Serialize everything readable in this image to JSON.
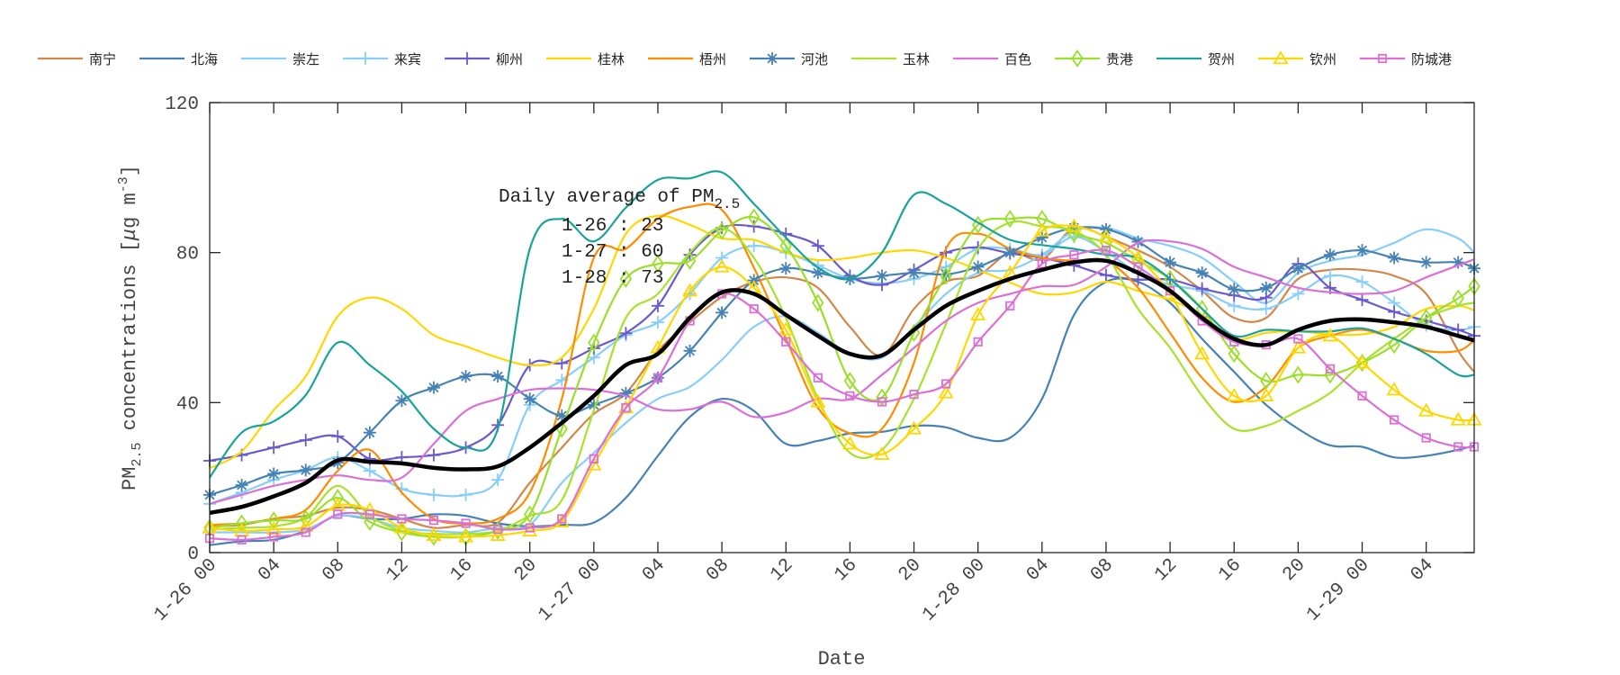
{
  "chart_data": {
    "type": "line",
    "title": "",
    "xlabel": "Date",
    "ylabel": "PM2.5 concentrations [μg m-3]",
    "ylabel_parts": {
      "main": "PM",
      "sub": "2.5",
      "rest": " concentrations [",
      "mu": "μ",
      "unit": "g m",
      "sup": "-3",
      "close": "]"
    },
    "ylim": [
      0,
      120
    ],
    "xlim": [
      "1-26 00",
      "1-29 07"
    ],
    "yticks": [
      0,
      40,
      80,
      120
    ],
    "xtick_labels": [
      "1-26 00",
      "04",
      "08",
      "12",
      "16",
      "20",
      "1-27 00",
      "04",
      "08",
      "12",
      "16",
      "20",
      "1-28 00",
      "04",
      "08",
      "12",
      "16",
      "20",
      "1-29 00",
      "04"
    ],
    "grid": false,
    "legend_placement": "top (outside, single row)",
    "annotation": {
      "title": "Daily average of PM",
      "title_sub": "2.5",
      "lines": [
        "1-26 : 23",
        "1-27 : 60",
        "1-28 : 73"
      ]
    },
    "x": [
      "1-26 00",
      "1-26 02",
      "1-26 04",
      "1-26 06",
      "1-26 08",
      "1-26 10",
      "1-26 12",
      "1-26 14",
      "1-26 16",
      "1-26 18",
      "1-26 20",
      "1-26 22",
      "1-27 00",
      "1-27 02",
      "1-27 04",
      "1-27 06",
      "1-27 08",
      "1-27 10",
      "1-27 12",
      "1-27 14",
      "1-27 16",
      "1-27 18",
      "1-27 20",
      "1-27 22",
      "1-28 00",
      "1-28 02",
      "1-28 04",
      "1-28 06",
      "1-28 08",
      "1-28 10",
      "1-28 12",
      "1-28 14",
      "1-28 16",
      "1-28 18",
      "1-28 20",
      "1-28 22",
      "1-29 00",
      "1-29 02",
      "1-29 04",
      "1-29 06",
      "1-29 07"
    ],
    "series": [
      {
        "name": "南宁",
        "color": "#D2874A",
        "marker": "none",
        "values": [
          7,
          7.4,
          9,
          9.8,
          12,
          11.4,
          9,
          6.6,
          7.4,
          8,
          18.6,
          28,
          37,
          42.5,
          53.8,
          61.4,
          68.2,
          72.2,
          73.4,
          70.6,
          60.2,
          52.6,
          65,
          72.2,
          73.8,
          80,
          78.2,
          86.6,
          84.2,
          80.6,
          76.2,
          69.8,
          62.6,
          62.6,
          73,
          75.4,
          75.4,
          73.8,
          69,
          53.8,
          48.2
        ]
      },
      {
        "name": "北海",
        "color": "#4682B4",
        "marker": "none",
        "values": [
          2,
          3,
          3.4,
          5.8,
          9.8,
          9,
          9,
          10.2,
          9.8,
          7.8,
          7,
          7.4,
          8,
          14.6,
          25.8,
          36.2,
          41,
          37.8,
          29,
          29.8,
          31.8,
          32.2,
          33.8,
          33.4,
          30.6,
          30.6,
          41,
          63.4,
          72.2,
          72.2,
          66.6,
          57,
          48.2,
          39.4,
          33,
          28.6,
          28.2,
          25.4,
          25.8,
          27.4,
          28.6
        ]
      },
      {
        "name": "崇左",
        "color": "#87CEFA",
        "marker": "none",
        "values": [
          5.4,
          5.4,
          5.4,
          6.2,
          9.8,
          9,
          6.6,
          5.8,
          5.4,
          6.6,
          7.4,
          18.6,
          26.6,
          34.6,
          41,
          44.2,
          51.4,
          60.2,
          63,
          58.6,
          53,
          52,
          60.2,
          69,
          74.6,
          75.4,
          79.4,
          85.8,
          86.6,
          83.8,
          81.8,
          78.6,
          72.2,
          66.6,
          74.6,
          77.8,
          79.4,
          82.6,
          86.2,
          83.8,
          80
        ]
      },
      {
        "name": "来宾",
        "color": "#87CEFA",
        "marker": "plus",
        "values": [
          13,
          16,
          19.4,
          22,
          25.4,
          21.8,
          17,
          15.4,
          15.4,
          19.4,
          39.4,
          46,
          52,
          58,
          61.4,
          69,
          78.6,
          81.8,
          80,
          76.6,
          73,
          71.8,
          73,
          76.2,
          81,
          81,
          79.4,
          84.2,
          80.2,
          74.6,
          71.4,
          69.8,
          65.8,
          65,
          69,
          73.8,
          72.2,
          66.6,
          60.6,
          59.4,
          60.2
        ]
      },
      {
        "name": "柳州",
        "color": "#6A5ACD",
        "marker": "plus",
        "values": [
          24.5,
          26,
          28,
          30,
          31,
          25,
          25.4,
          26,
          28,
          34,
          50,
          50.5,
          54.5,
          58.5,
          65.8,
          79.4,
          86.6,
          87,
          85,
          81.8,
          73.8,
          71.4,
          75.4,
          80,
          81.4,
          79.8,
          78.6,
          76.6,
          74,
          72.8,
          72.8,
          70.4,
          68.6,
          68,
          77,
          70.6,
          67.4,
          64.2,
          61.8,
          59.4,
          57.8
        ]
      },
      {
        "name": "桂林",
        "color": "#FFD700",
        "marker": "none",
        "values": [
          22.5,
          27,
          38,
          47,
          63,
          68,
          65,
          58,
          55,
          52,
          50,
          52,
          65,
          85,
          89.8,
          87.4,
          83.8,
          83.4,
          80,
          78,
          78.6,
          80,
          80.6,
          78.6,
          75.4,
          72,
          69,
          69.4,
          72.2,
          69.8,
          67.4,
          63.4,
          57,
          58.6,
          59,
          58.2,
          58.2,
          60.2,
          65,
          65.8,
          64.6
        ]
      },
      {
        "name": "梧州",
        "color": "#FF8C00",
        "marker": "none",
        "values": [
          7.4,
          7.8,
          9,
          11.4,
          21.8,
          27.4,
          16,
          9,
          7.8,
          9,
          16,
          41,
          78.6,
          81,
          89,
          92.2,
          91.4,
          76,
          57,
          38.6,
          31.8,
          33,
          50.6,
          81,
          85,
          81,
          78.6,
          77.8,
          77.8,
          70.6,
          58.6,
          46.6,
          40.2,
          44.2,
          54.6,
          57.8,
          59.4,
          57,
          53.8,
          53.8,
          56.6
        ]
      },
      {
        "name": "河池",
        "color": "#4682B4",
        "marker": "asterisk",
        "values": [
          15.4,
          18,
          21,
          22,
          24,
          32,
          40.5,
          44,
          47,
          47,
          41,
          36.5,
          39.4,
          42.5,
          46.6,
          53.8,
          64,
          72.6,
          75.8,
          74.6,
          73,
          73.8,
          74.6,
          74.2,
          76.2,
          80,
          84,
          86.6,
          86.2,
          82.9,
          77.4,
          74.6,
          70.2,
          70.6,
          75.8,
          79.4,
          80.6,
          78.6,
          77.4,
          77.4,
          75.8
        ]
      },
      {
        "name": "玉林",
        "color": "#A8E22A",
        "marker": "none",
        "values": [
          6.2,
          6.6,
          7,
          9.4,
          17.8,
          9.8,
          5.8,
          5,
          5,
          5.8,
          9.8,
          14,
          38,
          62.6,
          69,
          80,
          86.6,
          78.6,
          62.6,
          41,
          26.6,
          27.4,
          41,
          61,
          81,
          88,
          87,
          85.8,
          79.4,
          65,
          54.6,
          41.8,
          33,
          33.8,
          37.8,
          42.6,
          50.6,
          57,
          62.6,
          65.8,
          66.6
        ]
      },
      {
        "name": "百色",
        "color": "#DA70D6",
        "marker": "none",
        "values": [
          13,
          15.4,
          17.8,
          19.4,
          20.6,
          19.4,
          20,
          29,
          37.8,
          41,
          43.4,
          43.8,
          43.4,
          41.8,
          38.2,
          38.2,
          40.2,
          36.2,
          37.4,
          41,
          41,
          47.4,
          54.6,
          61.8,
          66.6,
          69,
          71,
          71.4,
          76.2,
          82.6,
          83,
          81,
          76.2,
          73.4,
          70.6,
          69.4,
          69,
          69.8,
          73.4,
          76.6,
          78.2
        ]
      },
      {
        "name": "贵港",
        "color": "#9ADF2A",
        "marker": "diamond",
        "values": [
          6.6,
          7.8,
          8.6,
          9,
          14.6,
          8.2,
          5.4,
          4.2,
          4.2,
          5.8,
          10.2,
          33,
          56,
          73,
          77,
          77.8,
          85.8,
          89.4,
          81.8,
          66.6,
          45.8,
          41.4,
          58.6,
          73.8,
          87.4,
          89,
          89,
          85,
          82.6,
          77.8,
          73,
          65,
          53,
          45.8,
          47.4,
          47.4,
          50.6,
          55.4,
          62.6,
          67.8,
          71
        ]
      },
      {
        "name": "贺州",
        "color": "#1AA39A",
        "marker": "none",
        "values": [
          20,
          32,
          35,
          42,
          56,
          50,
          43,
          33,
          28,
          33,
          81,
          89,
          83,
          92,
          99.4,
          99.8,
          101.4,
          93,
          84,
          76,
          73,
          80,
          95.4,
          93,
          88,
          83.4,
          82,
          81,
          79.4,
          78.6,
          73,
          65,
          57.8,
          59.4,
          59,
          59,
          59.8,
          57,
          53,
          47.4,
          47.4
        ]
      },
      {
        "name": "钦州",
        "color": "#FFD700",
        "marker": "triangle",
        "values": [
          6.6,
          5.8,
          6.2,
          7,
          12.6,
          11.4,
          6.6,
          4.6,
          4.2,
          4.6,
          5.8,
          8.2,
          23.4,
          38.6,
          54.6,
          69.8,
          76.2,
          70.6,
          59.4,
          40.2,
          29,
          26.2,
          33,
          42.6,
          63.4,
          74.6,
          85.8,
          87,
          84.2,
          78.6,
          69,
          53,
          41.8,
          41.8,
          54.6,
          57.8,
          50.6,
          43.4,
          37.8,
          35.4,
          35.4
        ]
      },
      {
        "name": "防城港",
        "color": "#DA70D6",
        "marker": "square",
        "values": [
          3.8,
          3.4,
          4.2,
          5.4,
          10.2,
          10.2,
          9,
          8.6,
          7.8,
          6.2,
          6.6,
          9,
          25,
          38.6,
          46.6,
          61.8,
          69,
          65,
          56.2,
          46.6,
          41.8,
          40.2,
          42.2,
          45,
          56.2,
          65.8,
          77,
          79.4,
          80.6,
          76.2,
          69.8,
          61.8,
          56.2,
          55.4,
          57,
          49,
          41.8,
          35.4,
          30.6,
          28.2,
          28.2
        ]
      }
    ],
    "mean_series": {
      "color": "#000000",
      "values": [
        10.6,
        12.2,
        15,
        18.6,
        24.6,
        24.2,
        23.8,
        22.6,
        22.2,
        23,
        28,
        34.6,
        41.8,
        50,
        53,
        62.6,
        69.4,
        69,
        63.4,
        57.8,
        53,
        52.6,
        59.4,
        65.8,
        69.8,
        73,
        75.4,
        77.4,
        77.8,
        74.6,
        69.8,
        62.6,
        57,
        55.4,
        59.4,
        61.8,
        62.2,
        61.4,
        60.2,
        57.8,
        56.6
      ]
    }
  }
}
